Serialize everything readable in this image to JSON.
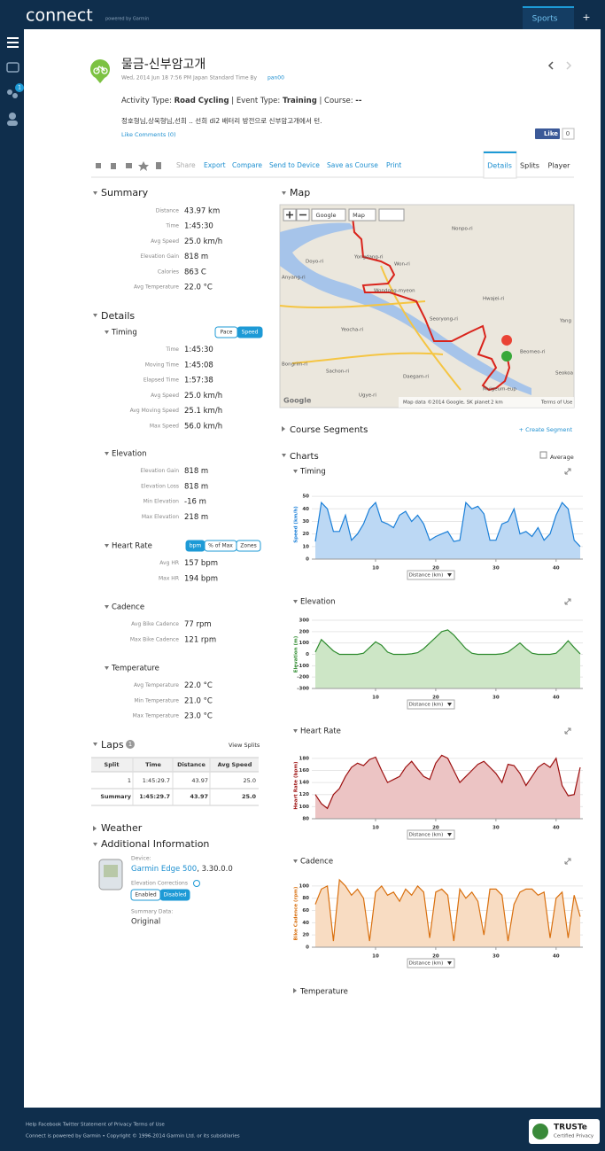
{
  "top_bar": {
    "logo": "connect",
    "powered": "powered by Garmin",
    "tab": "Sports",
    "plus": "+"
  },
  "sidebar": {
    "badge": "1"
  },
  "header": {
    "title": "물금-신부암고개",
    "subtitle": "Wed, 2014 Jun 18 7:56 PM Japan Standard Time By",
    "author": "pan00",
    "activity_line": [
      "Activity Type: ",
      "Road Cycling",
      " | Event Type: ",
      "Training",
      " | Course: ",
      "--"
    ],
    "description": "정호형님,상욱형님,선희 .. 선희 di2 배터리 방전으로 신부암고개에서 턴.",
    "like_comments": "Like Comments (0)",
    "fb_like": "Like",
    "fb_count": "0"
  },
  "toolbar": {
    "actions": [
      "Share",
      "Export",
      "Compare",
      "Send to Device",
      "Save as Course",
      "Print"
    ],
    "tabs": [
      "Details",
      "Splits",
      "Player"
    ]
  },
  "summary": {
    "heading": "Summary",
    "rows": [
      [
        "Distance",
        "43.97 km"
      ],
      [
        "Time",
        "1:45:30"
      ],
      [
        "Avg Speed",
        "25.0 km/h"
      ],
      [
        "Elevation Gain",
        "818 m"
      ],
      [
        "Calories",
        "863 C"
      ],
      [
        "Avg Temperature",
        "22.0 °C"
      ]
    ]
  },
  "details": {
    "heading": "Details",
    "groups": [
      {
        "title": "Timing",
        "toggle": [
          "Pace",
          "Speed"
        ],
        "rows": [
          [
            "Time",
            "1:45:30"
          ],
          [
            "Moving Time",
            "1:45:08"
          ],
          [
            "Elapsed Time",
            "1:57:38"
          ],
          [
            "Avg Speed",
            "25.0 km/h"
          ],
          [
            "Avg Moving Speed",
            "25.1 km/h"
          ],
          [
            "Max Speed",
            "56.0 km/h"
          ]
        ]
      },
      {
        "title": "Elevation",
        "rows": [
          [
            "Elevation Gain",
            "818 m"
          ],
          [
            "Elevation Loss",
            "818 m"
          ],
          [
            "Min Elevation",
            "-16 m"
          ],
          [
            "Max Elevation",
            "218 m"
          ]
        ]
      },
      {
        "title": "Heart Rate",
        "toggle": [
          "bpm",
          "% of Max",
          "Zones"
        ],
        "rows": [
          [
            "Avg HR",
            "157 bpm"
          ],
          [
            "Max HR",
            "194 bpm"
          ]
        ]
      },
      {
        "title": "Cadence",
        "rows": [
          [
            "Avg Bike Cadence",
            "77 rpm"
          ],
          [
            "Max Bike Cadence",
            "121 rpm"
          ]
        ]
      },
      {
        "title": "Temperature",
        "rows": [
          [
            "Avg Temperature",
            "22.0 °C"
          ],
          [
            "Min Temperature",
            "21.0 °C"
          ],
          [
            "Max Temperature",
            "23.0 °C"
          ]
        ]
      }
    ]
  },
  "laps": {
    "heading": "Laps",
    "count": "1",
    "view_splits": "View Splits",
    "columns": [
      "Split",
      "Time",
      "Distance",
      "Avg Speed"
    ],
    "rows": [
      [
        "1",
        "1:45:29.7",
        "43.97",
        "25.0"
      ],
      [
        "Summary",
        "1:45:29.7",
        "43.97",
        "25.0"
      ]
    ]
  },
  "weather": "Weather",
  "additional": {
    "heading": "Additional Information",
    "device_label": "Device:",
    "device": "Garmin Edge 500",
    "device_version": ", 3.30.0.0",
    "elev_label": "Elevation Corrections",
    "elev_toggle": [
      "Enabled",
      "Disabled"
    ],
    "summary_label": "Summary Data:",
    "summary_value": "Original"
  },
  "map": {
    "heading": "Map",
    "buttons": [
      "Google",
      "Map"
    ],
    "labels": [
      "Yongdang-ri",
      "Won-ri",
      "Wondong-myeon",
      "Doyo-ri",
      "Anyang-ri",
      "Yeocha-ri",
      "Sachon-ri",
      "Bongrim-ri",
      "Daegam-ri",
      "Ugye-ri",
      "Seoryong-ri",
      "Hwajei-ri",
      "Beomeo-ri",
      "Mulgeum-eup",
      "Nonpo-ri",
      "Seokoa",
      "Yang"
    ],
    "logo": "Google",
    "attribution": "Map data ©2014 Google, SK planet",
    "scale": "2 km",
    "terms": "Terms of Use"
  },
  "course_segments": {
    "heading": "Course Segments",
    "action": "+ Create Segment"
  },
  "charts_section": {
    "heading": "Charts",
    "average": "Average",
    "collapsed": "Temperature"
  },
  "chart_data": [
    {
      "type": "line",
      "title": "Timing",
      "ylabel": "Speed (km/h)",
      "xlabel": "Distance (km)",
      "color": "#1a7fd8",
      "fill": "#bcd8f4",
      "x": [
        0,
        1,
        2,
        3,
        4,
        5,
        6,
        7,
        8,
        9,
        10,
        11,
        12,
        13,
        14,
        15,
        16,
        17,
        18,
        19,
        20,
        21,
        22,
        23,
        24,
        25,
        26,
        27,
        28,
        29,
        30,
        31,
        32,
        33,
        34,
        35,
        36,
        37,
        38,
        39,
        40,
        41,
        42,
        43,
        44
      ],
      "values": [
        14,
        45,
        40,
        22,
        22,
        35,
        15,
        20,
        28,
        40,
        45,
        30,
        28,
        25,
        35,
        38,
        30,
        35,
        28,
        15,
        18,
        20,
        22,
        14,
        15,
        45,
        40,
        42,
        36,
        15,
        15,
        28,
        30,
        40,
        20,
        22,
        18,
        25,
        15,
        20,
        35,
        45,
        40,
        15,
        10
      ],
      "xlim": [
        0,
        44
      ],
      "ylim": [
        0,
        55
      ],
      "xticks": [
        10,
        20,
        30,
        40
      ],
      "yticks": [
        0,
        10,
        20,
        30,
        40,
        50
      ]
    },
    {
      "type": "line",
      "title": "Elevation",
      "ylabel": "Elevation (m)",
      "xlabel": "Distance (km)",
      "color": "#2e8b2e",
      "fill": "#cde6c6",
      "x": [
        0,
        1,
        2,
        3,
        4,
        5,
        6,
        7,
        8,
        9,
        10,
        11,
        12,
        13,
        14,
        15,
        16,
        17,
        18,
        19,
        20,
        21,
        22,
        23,
        24,
        25,
        26,
        27,
        28,
        29,
        30,
        31,
        32,
        33,
        34,
        35,
        36,
        37,
        38,
        39,
        40,
        41,
        42,
        43,
        44
      ],
      "values": [
        20,
        130,
        80,
        30,
        0,
        0,
        0,
        0,
        10,
        60,
        110,
        80,
        20,
        0,
        0,
        0,
        5,
        15,
        50,
        100,
        150,
        200,
        215,
        170,
        110,
        50,
        10,
        0,
        0,
        0,
        0,
        5,
        20,
        60,
        100,
        50,
        10,
        0,
        0,
        0,
        10,
        60,
        120,
        60,
        5
      ],
      "xlim": [
        0,
        44
      ],
      "ylim": [
        -300,
        300
      ],
      "xticks": [
        10,
        20,
        30,
        40
      ],
      "yticks": [
        -300,
        -200,
        -100,
        0,
        100,
        200,
        300
      ]
    },
    {
      "type": "line",
      "title": "Heart Rate",
      "ylabel": "Heart Rate (bpm)",
      "xlabel": "Distance (km)",
      "color": "#9c0f0f",
      "fill": "#ecc4c4",
      "x": [
        0,
        1,
        2,
        3,
        4,
        5,
        6,
        7,
        8,
        9,
        10,
        11,
        12,
        13,
        14,
        15,
        16,
        17,
        18,
        19,
        20,
        21,
        22,
        23,
        24,
        25,
        26,
        27,
        28,
        29,
        30,
        31,
        32,
        33,
        34,
        35,
        36,
        37,
        38,
        39,
        40,
        41,
        42,
        43,
        44
      ],
      "values": [
        120,
        105,
        97,
        120,
        130,
        150,
        165,
        172,
        168,
        178,
        182,
        160,
        140,
        145,
        150,
        165,
        175,
        162,
        150,
        145,
        172,
        185,
        180,
        160,
        140,
        150,
        160,
        170,
        175,
        165,
        155,
        140,
        170,
        168,
        155,
        135,
        150,
        165,
        172,
        165,
        180,
        135,
        118,
        120,
        165
      ],
      "xlim": [
        0,
        44
      ],
      "ylim": [
        80,
        190
      ],
      "xticks": [
        10,
        20,
        30,
        40
      ],
      "yticks": [
        80,
        100,
        120,
        140,
        160,
        180
      ]
    },
    {
      "type": "line",
      "title": "Cadence",
      "ylabel": "Bike Cadence (rpm)",
      "xlabel": "Distance (km)",
      "color": "#d9700f",
      "fill": "#f8dcc2",
      "x": [
        0,
        1,
        2,
        3,
        4,
        5,
        6,
        7,
        8,
        9,
        10,
        11,
        12,
        13,
        14,
        15,
        16,
        17,
        18,
        19,
        20,
        21,
        22,
        23,
        24,
        25,
        26,
        27,
        28,
        29,
        30,
        31,
        32,
        33,
        34,
        35,
        36,
        37,
        38,
        39,
        40,
        41,
        42,
        43,
        44
      ],
      "values": [
        70,
        95,
        100,
        10,
        110,
        100,
        85,
        95,
        80,
        10,
        90,
        100,
        85,
        90,
        75,
        95,
        85,
        100,
        90,
        15,
        90,
        95,
        85,
        10,
        95,
        80,
        90,
        75,
        20,
        95,
        95,
        85,
        10,
        70,
        90,
        95,
        95,
        85,
        90,
        15,
        80,
        90,
        15,
        85,
        50
      ],
      "xlim": [
        0,
        44
      ],
      "ylim": [
        0,
        110
      ],
      "xticks": [
        10,
        20,
        30,
        40
      ],
      "yticks": [
        0,
        20,
        40,
        60,
        80,
        100
      ]
    }
  ],
  "footer": {
    "links": "Help Facebook Twitter Statement of Privacy Terms of Use",
    "copyright": "Connect is powered by Garmin • Copyright © 1996-2014 Garmin Ltd. or its subsidiaries",
    "truste": "TRUSTe",
    "truste_sub": "Certified Privacy"
  }
}
